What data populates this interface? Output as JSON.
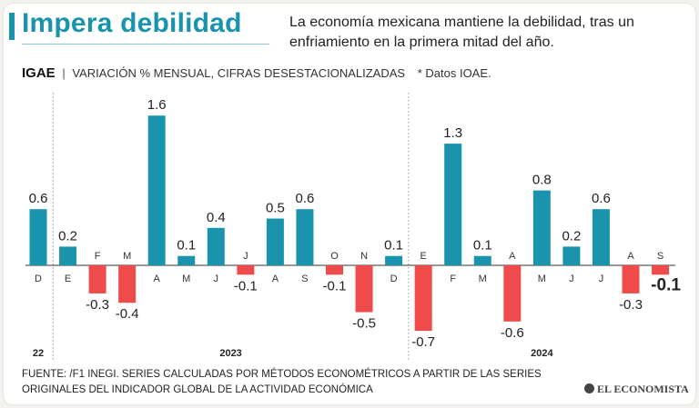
{
  "header": {
    "title": "Impera debilidad",
    "subtitle": "La economía mexicana mantiene la debilidad, tras un enfriamiento en la primera mitad del año."
  },
  "indicator": {
    "name": "IGAE",
    "separator": "|",
    "description": "VARIACIÓN % MENSUAL, CIFRAS DESESTACIONALIZADAS",
    "note": "* Datos IOAE."
  },
  "footer": {
    "source_line1": "FUENTE: /F1 INEGI. SERIES CALCULADAS POR MÉTODOS ECONOMÉTRICOS A PARTIR DE LAS SERIES",
    "source_line2": "ORIGINALES DEL INDICADOR GLOBAL DE LA ACTIVIDAD ECONÓMICA",
    "logo": "EL ECONOMISTA"
  },
  "colors": {
    "positive": "#1a93ad",
    "negative": "#ef4b4b",
    "title": "#1a93ad",
    "axis": "#333333"
  },
  "chart_data": {
    "type": "bar",
    "categories": [
      "D",
      "E",
      "F",
      "M",
      "A",
      "M",
      "J",
      "J",
      "A",
      "S",
      "O",
      "N",
      "D",
      "E",
      "F",
      "M",
      "A",
      "M",
      "J",
      "J",
      "A",
      "S"
    ],
    "values": [
      0.6,
      0.2,
      -0.3,
      -0.4,
      1.6,
      0.1,
      0.4,
      -0.1,
      0.5,
      0.6,
      -0.1,
      -0.5,
      0.1,
      -0.7,
      1.3,
      0.1,
      -0.6,
      0.8,
      0.2,
      0.6,
      -0.3,
      -0.1
    ],
    "value_labels": [
      "0.6",
      "0.2",
      "-0.3",
      "-0.4",
      "1.6",
      "0.1",
      "0.4",
      "-0.1",
      "0.5",
      "0.6",
      "-0.1",
      "-0.5",
      "0.1",
      "-0.7",
      "1.3",
      "0.1",
      "-0.6",
      "0.8",
      "0.2",
      "0.6",
      "-0.3",
      "-0.1"
    ],
    "highlighted_last": true,
    "years": [
      {
        "label": "22",
        "from": 0,
        "to": 0
      },
      {
        "label": "2023",
        "from": 1,
        "to": 12
      },
      {
        "label": "2024",
        "from": 13,
        "to": 21
      }
    ],
    "ylim": [
      -0.8,
      1.8
    ],
    "grid": false,
    "legend": "none"
  }
}
